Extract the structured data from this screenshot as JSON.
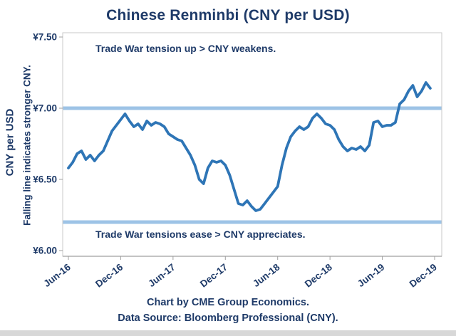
{
  "title": "Chinese Renminbi (CNY per USD)",
  "annotations": {
    "top": "Trade War tension up > CNY weakens.",
    "bottom": "Trade War tensions ease > CNY appreciates."
  },
  "y_axis": {
    "title": "CNY per  USD",
    "subtitle": "Falling line indicates stronger CNY."
  },
  "footer": {
    "line1": "Chart by CME Group Economics.",
    "line2": "Data Source:  Bloomberg Professional (CNY)."
  },
  "chart_data": {
    "type": "line",
    "title": "Chinese Renminbi (CNY per USD)",
    "xlabel": "",
    "ylabel": "CNY per USD",
    "ylim": [
      6.0,
      7.5
    ],
    "xlim_months": [
      0,
      42
    ],
    "grid": false,
    "legend": "none",
    "y_ticks": [
      {
        "label": "¥7.50",
        "value": 7.5
      },
      {
        "label": "¥7.00",
        "value": 7.0
      },
      {
        "label": "¥6.50",
        "value": 6.5
      },
      {
        "label": "¥6.00",
        "value": 6.0
      }
    ],
    "x_ticks": [
      {
        "label": "Jun-16",
        "month": 0
      },
      {
        "label": "Dec-16",
        "month": 6
      },
      {
        "label": "Jun-17",
        "month": 12
      },
      {
        "label": "Dec-17",
        "month": 18
      },
      {
        "label": "Jun-18",
        "month": 24
      },
      {
        "label": "Dec-18",
        "month": 30
      },
      {
        "label": "Jun-19",
        "month": 36
      },
      {
        "label": "Dec-19",
        "month": 42
      }
    ],
    "reference_bands": [
      {
        "value": 7.0,
        "meaning": "CNY 7.00 per USD level"
      },
      {
        "value": 6.2,
        "meaning": "CNY 6.20 per USD level"
      }
    ],
    "series": [
      {
        "name": "CNY per USD",
        "t_start": 0,
        "t_step": 0.5,
        "t_unit": "months since Jun-2016",
        "values": [
          6.58,
          6.62,
          6.68,
          6.7,
          6.64,
          6.67,
          6.63,
          6.67,
          6.7,
          6.77,
          6.84,
          6.88,
          6.92,
          6.96,
          6.91,
          6.87,
          6.89,
          6.85,
          6.91,
          6.88,
          6.9,
          6.89,
          6.87,
          6.82,
          6.8,
          6.78,
          6.77,
          6.72,
          6.67,
          6.6,
          6.5,
          6.47,
          6.58,
          6.63,
          6.62,
          6.63,
          6.6,
          6.53,
          6.43,
          6.33,
          6.32,
          6.35,
          6.31,
          6.28,
          6.29,
          6.33,
          6.37,
          6.41,
          6.45,
          6.6,
          6.72,
          6.8,
          6.84,
          6.87,
          6.85,
          6.87,
          6.93,
          6.96,
          6.93,
          6.89,
          6.88,
          6.85,
          6.78,
          6.73,
          6.7,
          6.72,
          6.71,
          6.73,
          6.7,
          6.74,
          6.9,
          6.91,
          6.87,
          6.88,
          6.88,
          6.9,
          7.03,
          7.06,
          7.12,
          7.16,
          7.08,
          7.12,
          7.18,
          7.14
        ]
      }
    ],
    "colors": {
      "line": "#2E75B6",
      "band": "#9DC3E6",
      "text": "#1E3A68",
      "border": "#C9C9C9",
      "axis": "#9F9F9F"
    }
  }
}
